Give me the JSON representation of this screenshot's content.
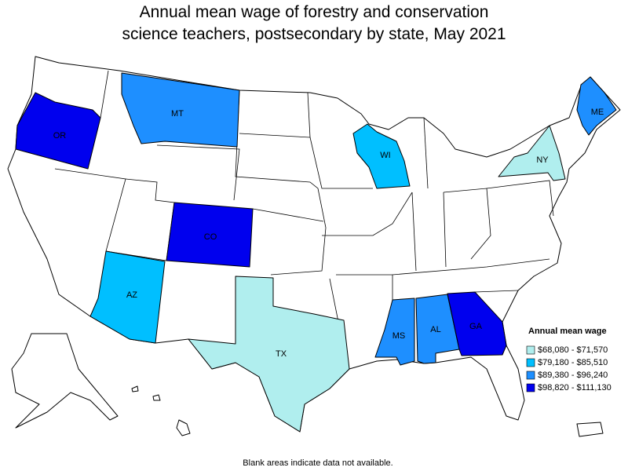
{
  "title": [
    "Annual mean wage of forestry and conservation",
    "science teachers, postsecondary by state, May 2021"
  ],
  "legend": {
    "title": "Annual mean wage",
    "items": [
      {
        "label": "$68,080 - $71,570",
        "color": "#b0eeee"
      },
      {
        "label": "$79,180 - $85,510",
        "color": "#00bfff"
      },
      {
        "label": "$89,380 - $96,240",
        "color": "#1e8fff"
      },
      {
        "label": "$98,820 - $111,130",
        "color": "#0000ee"
      }
    ]
  },
  "states": [
    {
      "label": "OR",
      "color": "#0000ee"
    },
    {
      "label": "MT",
      "color": "#1e8fff"
    },
    {
      "label": "CO",
      "color": "#0000ee"
    },
    {
      "label": "AZ",
      "color": "#00bfff"
    },
    {
      "label": "TX",
      "color": "#b0eeee"
    },
    {
      "label": "MS",
      "color": "#1e8fff"
    },
    {
      "label": "AL",
      "color": "#1e8fff"
    },
    {
      "label": "GA",
      "color": "#0000ee"
    },
    {
      "label": "WI",
      "color": "#00bfff"
    },
    {
      "label": "NY",
      "color": "#b0eeee"
    },
    {
      "label": "ME",
      "color": "#1e8fff"
    }
  ],
  "footnote": "Blank areas indicate data not available."
}
